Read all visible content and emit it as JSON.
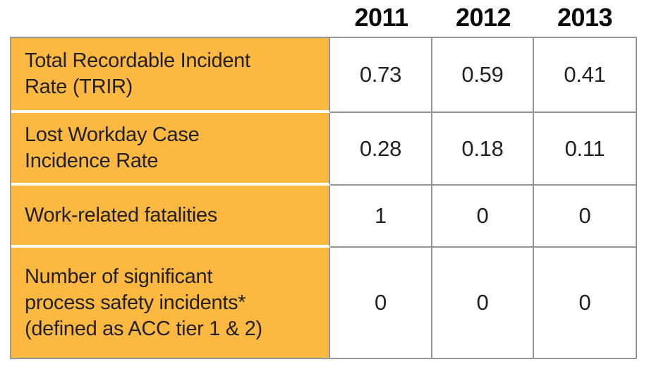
{
  "header": {
    "years": [
      "2011",
      "2012",
      "2013"
    ]
  },
  "table": {
    "rows": [
      {
        "label": "Total Recordable Incident\nRate (TRIR)",
        "values": [
          "0.73",
          "0.59",
          "0.41"
        ]
      },
      {
        "label": "Lost Workday Case\nIncidence Rate",
        "values": [
          "0.28",
          "0.18",
          "0.11"
        ]
      },
      {
        "label": "Work-related fatalities",
        "values": [
          "1",
          "0",
          "0"
        ]
      },
      {
        "label": "Number of significant\nprocess safety incidents*\n(defined as ACC tier 1 & 2)",
        "values": [
          "0",
          "0",
          "0"
        ]
      }
    ]
  },
  "theme": {
    "accent": "#FBB942",
    "border": "#939598",
    "text": "#231F20",
    "background": "#FFFFFF"
  },
  "chart_data": {
    "type": "table",
    "columns": [
      "",
      "2011",
      "2012",
      "2013"
    ],
    "rows": [
      [
        "Total Recordable Incident Rate (TRIR)",
        0.73,
        0.59,
        0.41
      ],
      [
        "Lost Workday Case Incidence Rate",
        0.28,
        0.18,
        0.11
      ],
      [
        "Work-related fatalities",
        1,
        0,
        0
      ],
      [
        "Number of significant process safety incidents* (defined as ACC tier 1 & 2)",
        0,
        0,
        0
      ]
    ]
  }
}
